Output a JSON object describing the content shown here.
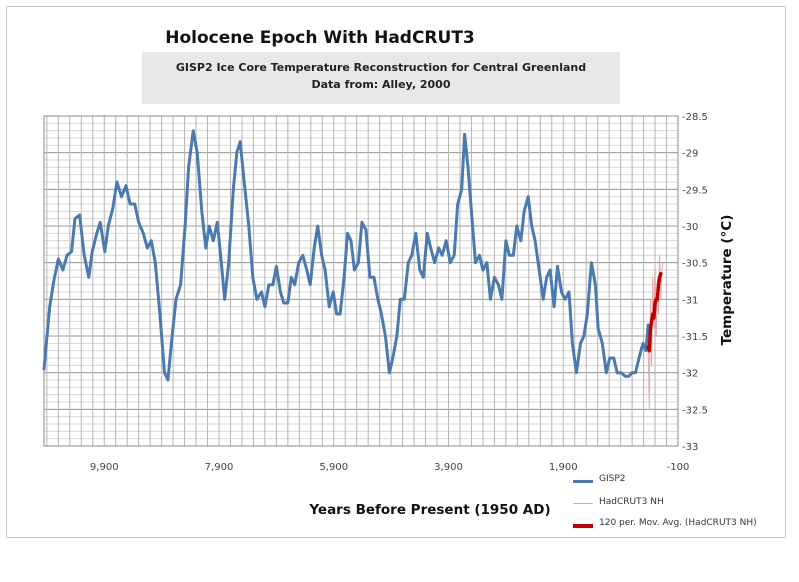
{
  "chart_data": {
    "type": "line",
    "title": "Holocene Epoch With HadCRUT3",
    "subtitle": [
      "GISP2 Ice Core Temperature Reconstruction for Central Greenland",
      "Data from: Alley, 2000"
    ],
    "xlabel": "Years Before Present (1950 AD)",
    "ylabel": "Temperature (°C)",
    "xlim": [
      10950,
      -100
    ],
    "ylim": [
      -33,
      -28.5
    ],
    "x_ticks": [
      9900,
      7900,
      5900,
      3900,
      1900,
      -100
    ],
    "x_tick_labels": [
      "9,900",
      "7,900",
      "5,900",
      "3,900",
      "1,900",
      "-100"
    ],
    "y_ticks": [
      -28.5,
      -29,
      -29.5,
      -30,
      -30.5,
      -31,
      -31.5,
      -32,
      -32.5,
      -33
    ],
    "y_tick_labels": [
      "-28.5",
      "-29",
      "-29.5",
      "-30",
      "-30.5",
      "-31",
      "-31.5",
      "-32",
      "-32.5",
      "-33"
    ],
    "grid": true,
    "legend_position": "bottom-right",
    "series": [
      {
        "name": "GISP2",
        "color": "#4a7ab0",
        "points": [
          [
            10950,
            -31.95
          ],
          [
            10850,
            -31.1
          ],
          [
            10780,
            -30.75
          ],
          [
            10700,
            -30.45
          ],
          [
            10620,
            -30.6
          ],
          [
            10550,
            -30.4
          ],
          [
            10470,
            -30.35
          ],
          [
            10410,
            -29.9
          ],
          [
            10330,
            -29.85
          ],
          [
            10250,
            -30.4
          ],
          [
            10170,
            -30.7
          ],
          [
            10110,
            -30.35
          ],
          [
            10030,
            -30.1
          ],
          [
            9970,
            -29.95
          ],
          [
            9890,
            -30.35
          ],
          [
            9830,
            -30.0
          ],
          [
            9750,
            -29.75
          ],
          [
            9680,
            -29.4
          ],
          [
            9600,
            -29.6
          ],
          [
            9520,
            -29.45
          ],
          [
            9450,
            -29.7
          ],
          [
            9370,
            -29.7
          ],
          [
            9300,
            -29.95
          ],
          [
            9220,
            -30.1
          ],
          [
            9150,
            -30.3
          ],
          [
            9080,
            -30.2
          ],
          [
            9010,
            -30.5
          ],
          [
            8930,
            -31.2
          ],
          [
            8850,
            -32.0
          ],
          [
            8790,
            -32.1
          ],
          [
            8730,
            -31.6
          ],
          [
            8650,
            -31.0
          ],
          [
            8570,
            -30.8
          ],
          [
            8490,
            -30.0
          ],
          [
            8430,
            -29.2
          ],
          [
            8350,
            -28.7
          ],
          [
            8280,
            -29.0
          ],
          [
            8200,
            -29.8
          ],
          [
            8130,
            -30.3
          ],
          [
            8070,
            -30.0
          ],
          [
            8000,
            -30.2
          ],
          [
            7930,
            -29.95
          ],
          [
            7860,
            -30.5
          ],
          [
            7800,
            -31.0
          ],
          [
            7730,
            -30.5
          ],
          [
            7650,
            -29.5
          ],
          [
            7590,
            -29.0
          ],
          [
            7530,
            -28.85
          ],
          [
            7460,
            -29.4
          ],
          [
            7380,
            -30.0
          ],
          [
            7310,
            -30.7
          ],
          [
            7240,
            -31.0
          ],
          [
            7160,
            -30.9
          ],
          [
            7100,
            -31.1
          ],
          [
            7030,
            -30.8
          ],
          [
            6960,
            -30.8
          ],
          [
            6900,
            -30.55
          ],
          [
            6830,
            -30.9
          ],
          [
            6770,
            -31.05
          ],
          [
            6700,
            -31.05
          ],
          [
            6640,
            -30.7
          ],
          [
            6580,
            -30.8
          ],
          [
            6510,
            -30.5
          ],
          [
            6440,
            -30.4
          ],
          [
            6370,
            -30.6
          ],
          [
            6310,
            -30.8
          ],
          [
            6240,
            -30.3
          ],
          [
            6180,
            -30.0
          ],
          [
            6110,
            -30.4
          ],
          [
            6050,
            -30.6
          ],
          [
            5980,
            -31.1
          ],
          [
            5910,
            -30.9
          ],
          [
            5850,
            -31.2
          ],
          [
            5790,
            -31.2
          ],
          [
            5720,
            -30.7
          ],
          [
            5660,
            -30.1
          ],
          [
            5600,
            -30.2
          ],
          [
            5540,
            -30.6
          ],
          [
            5470,
            -30.5
          ],
          [
            5410,
            -29.95
          ],
          [
            5340,
            -30.05
          ],
          [
            5270,
            -30.7
          ],
          [
            5200,
            -30.7
          ],
          [
            5130,
            -31.0
          ],
          [
            5070,
            -31.2
          ],
          [
            5000,
            -31.5
          ],
          [
            4930,
            -32.0
          ],
          [
            4870,
            -31.8
          ],
          [
            4800,
            -31.5
          ],
          [
            4740,
            -31.0
          ],
          [
            4670,
            -31.0
          ],
          [
            4600,
            -30.5
          ],
          [
            4540,
            -30.4
          ],
          [
            4470,
            -30.1
          ],
          [
            4400,
            -30.6
          ],
          [
            4340,
            -30.7
          ],
          [
            4270,
            -30.1
          ],
          [
            4210,
            -30.3
          ],
          [
            4140,
            -30.5
          ],
          [
            4070,
            -30.3
          ],
          [
            4010,
            -30.4
          ],
          [
            3940,
            -30.2
          ],
          [
            3870,
            -30.5
          ],
          [
            3800,
            -30.4
          ],
          [
            3740,
            -29.7
          ],
          [
            3670,
            -29.5
          ],
          [
            3620,
            -28.75
          ],
          [
            3560,
            -29.2
          ],
          [
            3490,
            -29.9
          ],
          [
            3430,
            -30.5
          ],
          [
            3360,
            -30.4
          ],
          [
            3300,
            -30.6
          ],
          [
            3230,
            -30.5
          ],
          [
            3170,
            -31.0
          ],
          [
            3100,
            -30.7
          ],
          [
            3030,
            -30.8
          ],
          [
            2970,
            -31.0
          ],
          [
            2900,
            -30.2
          ],
          [
            2840,
            -30.4
          ],
          [
            2770,
            -30.4
          ],
          [
            2710,
            -30.0
          ],
          [
            2640,
            -30.2
          ],
          [
            2580,
            -29.8
          ],
          [
            2510,
            -29.6
          ],
          [
            2450,
            -30.0
          ],
          [
            2390,
            -30.2
          ],
          [
            2320,
            -30.6
          ],
          [
            2250,
            -31.0
          ],
          [
            2190,
            -30.7
          ],
          [
            2130,
            -30.6
          ],
          [
            2060,
            -31.1
          ],
          [
            2000,
            -30.55
          ],
          [
            1930,
            -30.9
          ],
          [
            1870,
            -31.0
          ],
          [
            1800,
            -30.9
          ],
          [
            1740,
            -31.6
          ],
          [
            1670,
            -32.0
          ],
          [
            1600,
            -31.6
          ],
          [
            1540,
            -31.5
          ],
          [
            1480,
            -31.2
          ],
          [
            1410,
            -30.5
          ],
          [
            1340,
            -30.8
          ],
          [
            1290,
            -31.4
          ],
          [
            1220,
            -31.6
          ],
          [
            1150,
            -32.0
          ],
          [
            1090,
            -31.8
          ],
          [
            1020,
            -31.8
          ],
          [
            960,
            -32.0
          ],
          [
            890,
            -32.0
          ],
          [
            820,
            -32.05
          ],
          [
            760,
            -32.05
          ],
          [
            700,
            -32.0
          ],
          [
            640,
            -32.0
          ],
          [
            580,
            -31.8
          ],
          [
            510,
            -31.6
          ],
          [
            460,
            -31.7
          ],
          [
            420,
            -31.35
          ]
        ]
      },
      {
        "name": "HadCRUT3  NH",
        "color": "#e3a9a9",
        "points": [
          [
            420,
            -31.6
          ],
          [
            400,
            -32.5
          ],
          [
            380,
            -31.0
          ],
          [
            360,
            -31.9
          ],
          [
            340,
            -30.7
          ],
          [
            320,
            -31.4
          ],
          [
            300,
            -30.5
          ],
          [
            280,
            -31.5
          ],
          [
            260,
            -30.8
          ],
          [
            240,
            -31.2
          ],
          [
            220,
            -30.4
          ],
          [
            200,
            -31.0
          ],
          [
            180,
            -30.6
          ],
          [
            160,
            -30.5
          ]
        ]
      },
      {
        "name": "120 per. Mov. Avg. (HadCRUT3  NH)",
        "color": "#c00000",
        "points": [
          [
            420,
            -31.65
          ],
          [
            400,
            -31.7
          ],
          [
            380,
            -31.4
          ],
          [
            360,
            -31.3
          ],
          [
            340,
            -31.2
          ],
          [
            320,
            -31.25
          ],
          [
            300,
            -31.05
          ],
          [
            280,
            -31.0
          ],
          [
            260,
            -31.0
          ],
          [
            240,
            -30.8
          ],
          [
            220,
            -30.7
          ],
          [
            200,
            -30.65
          ]
        ]
      }
    ]
  }
}
